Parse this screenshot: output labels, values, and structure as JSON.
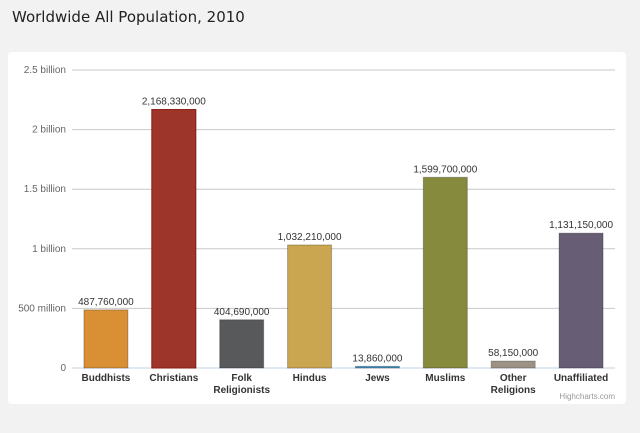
{
  "chart_data": {
    "type": "bar",
    "title": "Worldwide All Population, 2010",
    "categories": [
      "Buddhists",
      "Christians",
      "Folk Religionists",
      "Hindus",
      "Jews",
      "Muslims",
      "Other Religions",
      "Unaffiliated"
    ],
    "values": [
      487760000,
      2168330000,
      404690000,
      1032210000,
      13860000,
      1599700000,
      58150000,
      1131150000
    ],
    "data_labels": [
      "487,760,000",
      "2,168,330,000",
      "404,690,000",
      "1,032,210,000",
      "13,860,000",
      "1,599,700,000",
      "58,150,000",
      "1,131,150,000"
    ],
    "colors": [
      "#d98f33",
      "#9e352b",
      "#58595b",
      "#c9a64f",
      "#3d8ebf",
      "#868a3d",
      "#9c9384",
      "#675e75"
    ],
    "ylim": [
      0,
      2500000000
    ],
    "yticks": [
      0,
      500000000,
      1000000000,
      1500000000,
      2000000000,
      2500000000
    ],
    "ytick_labels": [
      "0",
      "500 million",
      "1 billion",
      "1.5 billion",
      "2 billion",
      "2.5 billion"
    ],
    "grid": true,
    "legend": "none",
    "credit": "Highcharts.com"
  }
}
